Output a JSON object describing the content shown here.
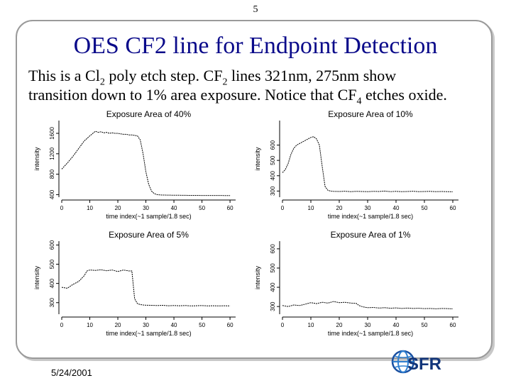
{
  "slide": {
    "page_number": "5",
    "title": "OES CF2 line for Endpoint Detection",
    "desc": {
      "l1a": "This is a Cl",
      "l1b": "2",
      "l1c": " poly etch step. CF",
      "l1d": "2",
      "l1e": " lines 321nm, 275nm show",
      "l2a": "transition down to 1% area exposure. Notice that CF",
      "l2b": "4",
      "l2c": " etches oxide."
    },
    "date": "5/24/2001",
    "logo_text": "SFR"
  },
  "chart_data": [
    {
      "type": "line",
      "title": "Exposure Area of 40%",
      "xlabel": "time index(~1 sample/1.8 sec)",
      "ylabel": "intensity",
      "xlim": [
        0,
        62
      ],
      "ylim": [
        350,
        1850
      ],
      "xticks": [
        "0",
        "10",
        "20",
        "30",
        "40",
        "50",
        "60"
      ],
      "yticks": [
        {
          "v": 400,
          "l": "400"
        },
        {
          "v": 800,
          "l": "800"
        },
        {
          "v": 1200,
          "l": "1200"
        },
        {
          "v": 1600,
          "l": "1600"
        }
      ],
      "x": [
        0,
        2,
        4,
        6,
        8,
        10,
        12,
        13,
        14,
        15,
        16,
        17,
        18,
        19,
        20,
        21,
        22,
        23,
        24,
        25,
        26,
        27,
        28,
        29,
        30,
        31,
        32,
        33,
        34,
        35,
        36,
        38,
        40,
        42,
        44,
        46,
        48,
        50,
        52,
        54,
        56,
        58,
        60
      ],
      "y": [
        900,
        1020,
        1150,
        1300,
        1450,
        1550,
        1640,
        1620,
        1630,
        1610,
        1620,
        1600,
        1610,
        1600,
        1600,
        1590,
        1580,
        1580,
        1570,
        1570,
        1560,
        1550,
        1470,
        1200,
        850,
        600,
        470,
        420,
        400,
        395,
        392,
        390,
        388,
        387,
        386,
        385,
        385,
        384,
        384,
        383,
        383,
        382,
        382
      ]
    },
    {
      "type": "line",
      "title": "Exposure Area of 10%",
      "xlabel": "time index(~1 sample/1.8 sec)",
      "ylabel": "intensity",
      "xlim": [
        0,
        62
      ],
      "ylim": [
        260,
        760
      ],
      "xticks": [
        "0",
        "10",
        "20",
        "30",
        "40",
        "50",
        "60"
      ],
      "yticks": [
        {
          "v": 300,
          "l": "300"
        },
        {
          "v": 400,
          "l": "400"
        },
        {
          "v": 500,
          "l": "500"
        },
        {
          "v": 600,
          "l": "600"
        }
      ],
      "x": [
        0,
        1,
        2,
        3,
        4,
        5,
        6,
        7,
        8,
        9,
        10,
        11,
        12,
        13,
        14,
        15,
        16,
        17,
        18,
        20,
        22,
        24,
        26,
        28,
        30,
        32,
        34,
        36,
        38,
        40,
        42,
        44,
        46,
        48,
        50,
        52,
        54,
        56,
        58,
        60
      ],
      "y": [
        420,
        440,
        480,
        540,
        580,
        600,
        610,
        620,
        630,
        640,
        650,
        655,
        640,
        600,
        460,
        330,
        305,
        300,
        298,
        297,
        299,
        296,
        298,
        297,
        296,
        298,
        297,
        300,
        296,
        298,
        296,
        297,
        299,
        296,
        297,
        298,
        296,
        297,
        296,
        295
      ]
    },
    {
      "type": "line",
      "title": "Exposure Area of 5%",
      "xlabel": "time index(~1 sample/1.8 sec)",
      "ylabel": "intensity",
      "xlim": [
        0,
        62
      ],
      "ylim": [
        240,
        620
      ],
      "xticks": [
        "0",
        "10",
        "20",
        "30",
        "40",
        "50",
        "60"
      ],
      "yticks": [
        {
          "v": 300,
          "l": "300"
        },
        {
          "v": 400,
          "l": "400"
        },
        {
          "v": 500,
          "l": "500"
        },
        {
          "v": 600,
          "l": "600"
        }
      ],
      "x": [
        0,
        2,
        4,
        6,
        8,
        9,
        10,
        12,
        14,
        16,
        18,
        20,
        22,
        24,
        25,
        26,
        27,
        28,
        29,
        30,
        32,
        34,
        36,
        38,
        40,
        42,
        44,
        46,
        48,
        50,
        52,
        54,
        56,
        58,
        60
      ],
      "y": [
        380,
        375,
        395,
        410,
        440,
        465,
        470,
        468,
        471,
        466,
        470,
        462,
        470,
        465,
        465,
        320,
        295,
        290,
        288,
        287,
        286,
        285,
        286,
        284,
        285,
        284,
        285,
        283,
        284,
        285,
        283,
        284,
        283,
        284,
        283
      ]
    },
    {
      "type": "line",
      "title": "Exposure Area of 1%",
      "xlabel": "time index(~1 sample/1.8 sec)",
      "ylabel": "intensity",
      "xlim": [
        0,
        62
      ],
      "ylim": [
        260,
        640
      ],
      "xticks": [
        "0",
        "10",
        "20",
        "30",
        "40",
        "50",
        "60"
      ],
      "yticks": [
        {
          "v": 300,
          "l": "300"
        },
        {
          "v": 400,
          "l": "400"
        },
        {
          "v": 500,
          "l": "500"
        },
        {
          "v": 600,
          "l": "600"
        }
      ],
      "x": [
        0,
        2,
        4,
        6,
        8,
        10,
        12,
        14,
        16,
        18,
        20,
        22,
        24,
        26,
        27,
        28,
        29,
        30,
        32,
        34,
        36,
        38,
        40,
        42,
        44,
        46,
        48,
        50,
        52,
        54,
        56,
        58,
        60
      ],
      "y": [
        305,
        300,
        308,
        305,
        312,
        320,
        315,
        322,
        318,
        326,
        320,
        322,
        318,
        316,
        305,
        300,
        296,
        294,
        295,
        292,
        294,
        291,
        293,
        290,
        292,
        290,
        291,
        289,
        290,
        288,
        290,
        289,
        288
      ]
    }
  ]
}
